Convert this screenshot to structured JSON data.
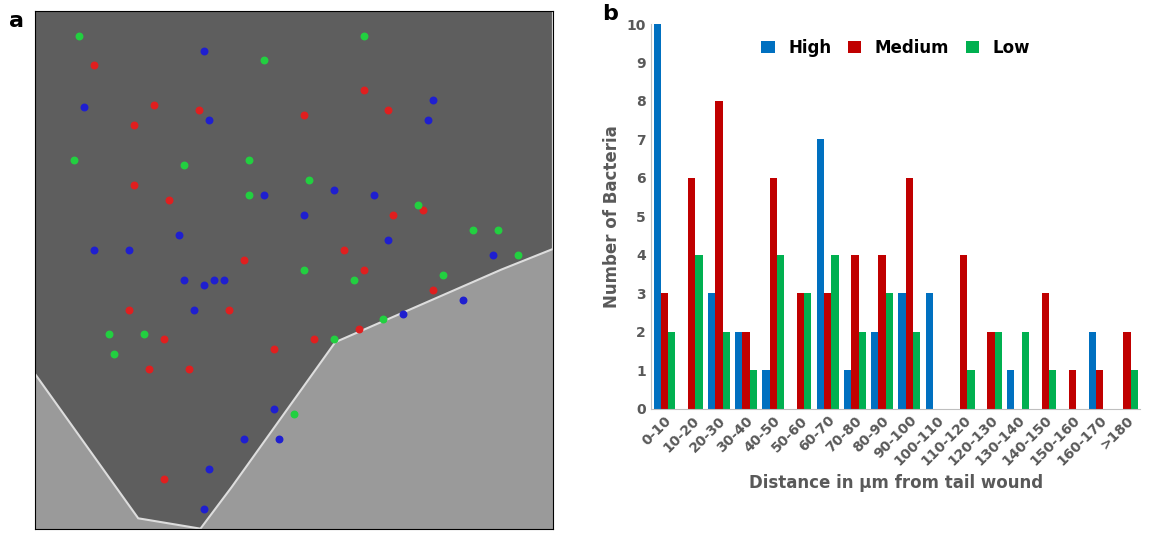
{
  "chart_data": [
    {
      "type": "scatter",
      "title": "a",
      "xlim": [
        0,
        520
      ],
      "ylim": [
        520,
        0
      ],
      "tick_labels": false,
      "series": [
        {
          "color": "#1f1fd0",
          "marker": "o",
          "x": [
            170,
            50,
            175,
            400,
            395,
            60,
            95,
            145,
            150,
            170,
            180,
            190,
            160,
            230,
            270,
            300,
            340,
            355,
            370,
            240,
            245,
            210,
            175,
            170,
            460,
            430
          ],
          "y": [
            40,
            97,
            110,
            90,
            110,
            240,
            240,
            225,
            270,
            275,
            270,
            270,
            300,
            185,
            205,
            180,
            185,
            230,
            305,
            400,
            430,
            430,
            460,
            500,
            245,
            290
          ]
        },
        {
          "color": "#e01f1f",
          "marker": "o",
          "x": [
            60,
            100,
            120,
            165,
            270,
            330,
            355,
            100,
            135,
            95,
            130,
            115,
            155,
            195,
            280,
            325,
            330,
            360,
            390,
            400,
            130,
            240,
            210,
            310
          ],
          "y": [
            55,
            115,
            95,
            100,
            105,
            80,
            100,
            175,
            190,
            300,
            330,
            360,
            360,
            300,
            330,
            320,
            260,
            205,
            200,
            280,
            470,
            340,
            250,
            240
          ]
        },
        {
          "color": "#22d040",
          "marker": "o",
          "x": [
            45,
            230,
            330,
            40,
            150,
            215,
            275,
            270,
            320,
            350,
            410,
            440,
            485,
            75,
            80,
            110,
            260,
            300,
            215,
            385,
            465
          ],
          "y": [
            25,
            50,
            25,
            150,
            155,
            185,
            170,
            260,
            270,
            310,
            265,
            220,
            245,
            325,
            345,
            325,
            405,
            330,
            150,
            195,
            220
          ]
        }
      ]
    },
    {
      "type": "bar",
      "title": "b",
      "x_label": "Distance in µm from tail wound",
      "y_label": "Number of Bacteria",
      "categories": [
        "0-10",
        "10-20",
        "20-30",
        "30-40",
        "40-50",
        "50-60",
        "60-70",
        "70-80",
        "80-90",
        "90-100",
        "100-110",
        "110-120",
        "120-130",
        "130-140",
        "140-150",
        "150-160",
        "160-170",
        ">180"
      ],
      "series": [
        {
          "name": "High",
          "color": "#0070c0",
          "values": [
            10,
            0,
            3,
            2,
            1,
            0,
            7,
            1,
            2,
            3,
            3,
            0,
            0,
            1,
            0,
            0,
            2,
            0
          ]
        },
        {
          "name": "Medium",
          "color": "#c00000",
          "values": [
            3,
            6,
            8,
            2,
            6,
            3,
            3,
            4,
            4,
            6,
            0,
            4,
            2,
            0,
            3,
            1,
            1,
            2
          ]
        },
        {
          "name": "Low",
          "color": "#00b050",
          "values": [
            2,
            4,
            2,
            1,
            4,
            3,
            4,
            2,
            3,
            2,
            0,
            1,
            2,
            2,
            1,
            0,
            0,
            1
          ]
        }
      ],
      "ylim": [
        0,
        10
      ],
      "yticks": [
        0,
        1,
        2,
        3,
        4,
        5,
        6,
        7,
        8,
        9,
        10
      ],
      "legend": "upper center",
      "grid": false
    }
  ]
}
